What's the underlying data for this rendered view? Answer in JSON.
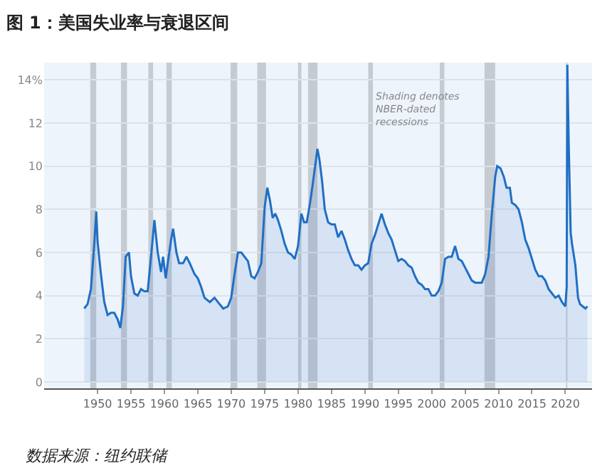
{
  "chart_data": {
    "type": "area",
    "title": "图 1：美国失业率与衰退区间",
    "annotations": [
      "Shading denotes\nNBER-dated\nrecessions",
      "数据来源：纽约联储"
    ],
    "x": [
      1948.0,
      1948.5,
      1949.0,
      1949.5,
      1949.8,
      1950.0,
      1950.5,
      1951.0,
      1951.5,
      1952.0,
      1952.5,
      1953.0,
      1953.4,
      1953.8,
      1954.2,
      1954.7,
      1955.0,
      1955.5,
      1956.0,
      1956.5,
      1957.0,
      1957.5,
      1958.0,
      1958.5,
      1959.0,
      1959.5,
      1959.8,
      1960.2,
      1960.5,
      1961.0,
      1961.3,
      1961.8,
      1962.2,
      1962.8,
      1963.3,
      1963.8,
      1964.5,
      1965.0,
      1965.5,
      1966.0,
      1966.8,
      1967.5,
      1968.0,
      1968.8,
      1969.5,
      1970.0,
      1970.5,
      1971.0,
      1971.5,
      1972.0,
      1972.5,
      1973.0,
      1973.5,
      1974.0,
      1974.5,
      1975.0,
      1975.4,
      1975.8,
      1976.2,
      1976.6,
      1977.0,
      1977.5,
      1978.0,
      1978.5,
      1979.0,
      1979.5,
      1980.0,
      1980.5,
      1980.9,
      1981.3,
      1981.8,
      1982.3,
      1982.9,
      1983.2,
      1983.6,
      1984.0,
      1984.5,
      1985.0,
      1985.5,
      1986.0,
      1986.5,
      1987.0,
      1987.5,
      1988.0,
      1988.5,
      1989.0,
      1989.5,
      1990.0,
      1990.5,
      1991.0,
      1991.5,
      1992.0,
      1992.5,
      1993.0,
      1993.5,
      1994.0,
      1994.5,
      1995.0,
      1995.5,
      1996.0,
      1996.5,
      1997.0,
      1997.5,
      1998.0,
      1998.5,
      1999.0,
      1999.5,
      2000.0,
      2000.5,
      2001.0,
      2001.5,
      2002.0,
      2002.5,
      2003.0,
      2003.5,
      2004.0,
      2004.5,
      2005.0,
      2005.5,
      2006.0,
      2006.5,
      2007.0,
      2007.5,
      2008.0,
      2008.5,
      2009.0,
      2009.5,
      2009.8,
      2010.3,
      2010.8,
      2011.2,
      2011.7,
      2012.0,
      2012.5,
      2013.0,
      2013.5,
      2014.0,
      2014.5,
      2015.0,
      2015.5,
      2016.0,
      2016.5,
      2017.0,
      2017.5,
      2018.0,
      2018.5,
      2019.0,
      2019.5,
      2020.0,
      2020.2,
      2020.3,
      2020.5,
      2020.8,
      2021.0,
      2021.5,
      2021.9,
      2022.2,
      2022.6,
      2023.0,
      2023.3
    ],
    "series": [
      {
        "color": "#1f6fc5",
        "values": [
          3.4,
          3.6,
          4.3,
          6.4,
          7.9,
          6.5,
          5.0,
          3.7,
          3.1,
          3.2,
          3.2,
          2.9,
          2.5,
          3.5,
          5.8,
          6.0,
          4.9,
          4.1,
          4.0,
          4.3,
          4.2,
          4.2,
          5.8,
          7.5,
          6.0,
          5.1,
          5.8,
          4.8,
          5.5,
          6.6,
          7.1,
          6.0,
          5.5,
          5.5,
          5.8,
          5.5,
          5.0,
          4.8,
          4.4,
          3.9,
          3.7,
          3.9,
          3.7,
          3.4,
          3.5,
          3.9,
          5.0,
          6.0,
          6.0,
          5.8,
          5.6,
          4.9,
          4.8,
          5.1,
          5.5,
          8.1,
          9.0,
          8.4,
          7.6,
          7.8,
          7.5,
          7.0,
          6.4,
          6.0,
          5.9,
          5.7,
          6.3,
          7.8,
          7.4,
          7.4,
          8.3,
          9.4,
          10.8,
          10.3,
          9.3,
          8.0,
          7.4,
          7.3,
          7.3,
          6.7,
          7.0,
          6.6,
          6.1,
          5.7,
          5.4,
          5.4,
          5.2,
          5.4,
          5.5,
          6.4,
          6.8,
          7.3,
          7.8,
          7.3,
          6.9,
          6.6,
          6.1,
          5.6,
          5.7,
          5.6,
          5.4,
          5.3,
          4.9,
          4.6,
          4.5,
          4.3,
          4.3,
          4.0,
          4.0,
          4.2,
          4.6,
          5.7,
          5.8,
          5.8,
          6.3,
          5.7,
          5.6,
          5.3,
          5.0,
          4.7,
          4.6,
          4.6,
          4.6,
          5.0,
          5.8,
          7.8,
          9.5,
          10.0,
          9.9,
          9.5,
          9.0,
          9.0,
          8.3,
          8.2,
          8.0,
          7.4,
          6.6,
          6.2,
          5.7,
          5.2,
          4.9,
          4.9,
          4.7,
          4.3,
          4.1,
          3.9,
          4.0,
          3.7,
          3.5,
          4.4,
          14.7,
          11.1,
          6.9,
          6.4,
          5.4,
          3.9,
          3.6,
          3.5,
          3.4,
          3.5
        ]
      }
    ],
    "bands": [
      {
        "axis": "x",
        "from": 1948.9,
        "to": 1949.8,
        "color": "#c6cbd2"
      },
      {
        "axis": "x",
        "from": 1953.5,
        "to": 1954.4,
        "color": "#c6cbd2"
      },
      {
        "axis": "x",
        "from": 1957.6,
        "to": 1958.3,
        "color": "#c6cbd2"
      },
      {
        "axis": "x",
        "from": 1960.3,
        "to": 1961.1,
        "color": "#c6cbd2"
      },
      {
        "axis": "x",
        "from": 1969.9,
        "to": 1970.9,
        "color": "#c6cbd2"
      },
      {
        "axis": "x",
        "from": 1973.9,
        "to": 1975.2,
        "color": "#c6cbd2"
      },
      {
        "axis": "x",
        "from": 1980.0,
        "to": 1980.5,
        "color": "#c6cbd2"
      },
      {
        "axis": "x",
        "from": 1981.5,
        "to": 1982.9,
        "color": "#c6cbd2"
      },
      {
        "axis": "x",
        "from": 1990.5,
        "to": 1991.2,
        "color": "#c6cbd2"
      },
      {
        "axis": "x",
        "from": 2001.2,
        "to": 2001.9,
        "color": "#c6cbd2"
      },
      {
        "axis": "x",
        "from": 2007.9,
        "to": 2009.5,
        "color": "#c6cbd2"
      },
      {
        "axis": "x",
        "from": 2020.1,
        "to": 2020.3,
        "color": "#c6cbd2"
      }
    ],
    "xlim": [
      1942,
      2024
    ],
    "xticks": [
      1950,
      1955,
      1960,
      1965,
      1970,
      1975,
      1980,
      1985,
      1990,
      1995,
      2000,
      2005,
      2010,
      2015,
      2020
    ],
    "ylim": [
      -0.3,
      14.8
    ],
    "yticks": [
      0,
      2,
      4,
      6,
      8,
      10,
      12,
      {
        "value": 14,
        "label": "14%"
      }
    ],
    "grid": "y"
  }
}
